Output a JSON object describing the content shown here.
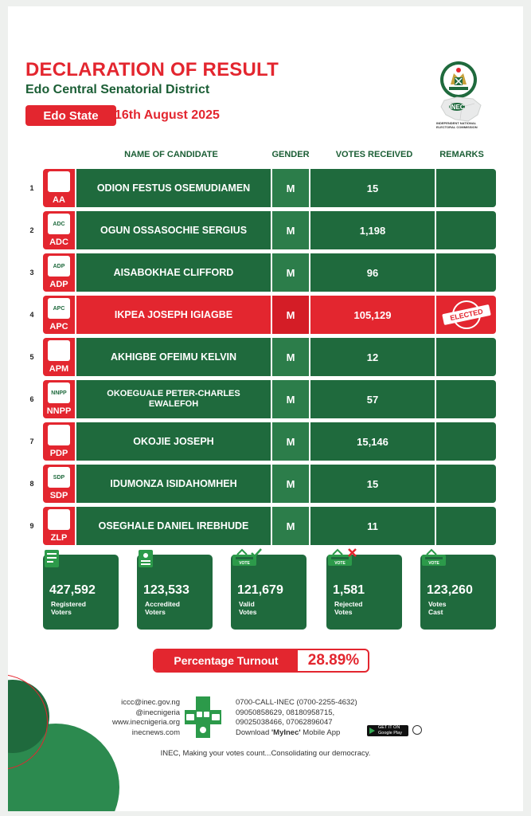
{
  "header": {
    "title": "DECLARATION OF RESULT",
    "subtitle": "Edo Central Senatorial District",
    "state": "Edo State",
    "date": "16th August 2025",
    "logo_text": "INEC",
    "logo_caption": "INDEPENDENT NATIONAL ELECTORAL COMMISSION"
  },
  "colors": {
    "green": "#1f6a3d",
    "red": "#e3262f"
  },
  "table": {
    "headers": {
      "candidate": "NAME OF CANDIDATE",
      "gender": "GENDER",
      "votes": "VOTES RECEIVED",
      "remarks": "REMARKS"
    },
    "rows": [
      {
        "num": "1",
        "party": "AA",
        "party_logo_text": "",
        "name": "ODION FESTUS OSEMUDIAMEN",
        "gender": "M",
        "votes": "15",
        "remark": ""
      },
      {
        "num": "2",
        "party": "ADC",
        "party_logo_text": "ADC",
        "name": "OGUN OSSASOCHIE SERGIUS",
        "gender": "M",
        "votes": "1,198",
        "remark": ""
      },
      {
        "num": "3",
        "party": "ADP",
        "party_logo_text": "ADP",
        "name": "AISABOKHAE CLIFFORD",
        "gender": "M",
        "votes": "96",
        "remark": ""
      },
      {
        "num": "4",
        "party": "APC",
        "party_logo_text": "APC",
        "name": "IKPEA JOSEPH IGIAGBE",
        "gender": "M",
        "votes": "105,129",
        "remark": "ELECTED"
      },
      {
        "num": "5",
        "party": "APM",
        "party_logo_text": "",
        "name": "AKHIGBE OFEIMU KELVIN",
        "gender": "M",
        "votes": "12",
        "remark": ""
      },
      {
        "num": "6",
        "party": "NNPP",
        "party_logo_text": "NNPP",
        "name": "OKOEGUALE PETER-CHARLES EWALEFOH",
        "gender": "M",
        "votes": "57",
        "remark": ""
      },
      {
        "num": "7",
        "party": "PDP",
        "party_logo_text": "",
        "name": "OKOJIE JOSEPH",
        "gender": "M",
        "votes": "15,146",
        "remark": ""
      },
      {
        "num": "8",
        "party": "SDP",
        "party_logo_text": "SDP",
        "name": "IDUMONZA ISIDAHOMHEH",
        "gender": "M",
        "votes": "15",
        "remark": ""
      },
      {
        "num": "9",
        "party": "ZLP",
        "party_logo_text": "",
        "name": "OSEGHALE DANIEL IREBHUDE",
        "gender": "M",
        "votes": "11",
        "remark": ""
      }
    ]
  },
  "stats": [
    {
      "value": "427,592",
      "label1": "Registered",
      "label2": "Voters",
      "icon": "ballot-book-icon"
    },
    {
      "value": "123,533",
      "label1": "Accredited",
      "label2": "Voters",
      "icon": "accredited-card-icon"
    },
    {
      "value": "121,679",
      "label1": "Valid",
      "label2": "Votes",
      "icon": "ballot-box-check-icon",
      "icon_text": "VOTE"
    },
    {
      "value": "1,581",
      "label1": "Rejected",
      "label2": "Votes",
      "icon": "ballot-box-x-icon",
      "icon_text": "VOTE"
    },
    {
      "value": "123,260",
      "label1": "Votes",
      "label2": "Cast",
      "icon": "ballot-box-icon",
      "icon_text": "VOTE"
    }
  ],
  "turnout": {
    "label": "Percentage Turnout",
    "value": "28.89%"
  },
  "contacts": {
    "email": "iccc@inec.gov.ng",
    "handle": "@inecnigeria",
    "website1": "www.inecnigeria.org",
    "website2": "inecnews.com",
    "phone_main": "0700-CALL-INEC (0700-2255-4632)",
    "phones_1": "09050858629, 08180958715,",
    "phones_2": "09025038466, 07062896047",
    "download_prefix": "Download ",
    "app_name": "'MyInec'",
    "download_suffix": " Mobile App",
    "store_top": "GET IT ON",
    "store_name": "Google Play"
  },
  "footer": "INEC, Making your votes count...Consolidating our democracy."
}
